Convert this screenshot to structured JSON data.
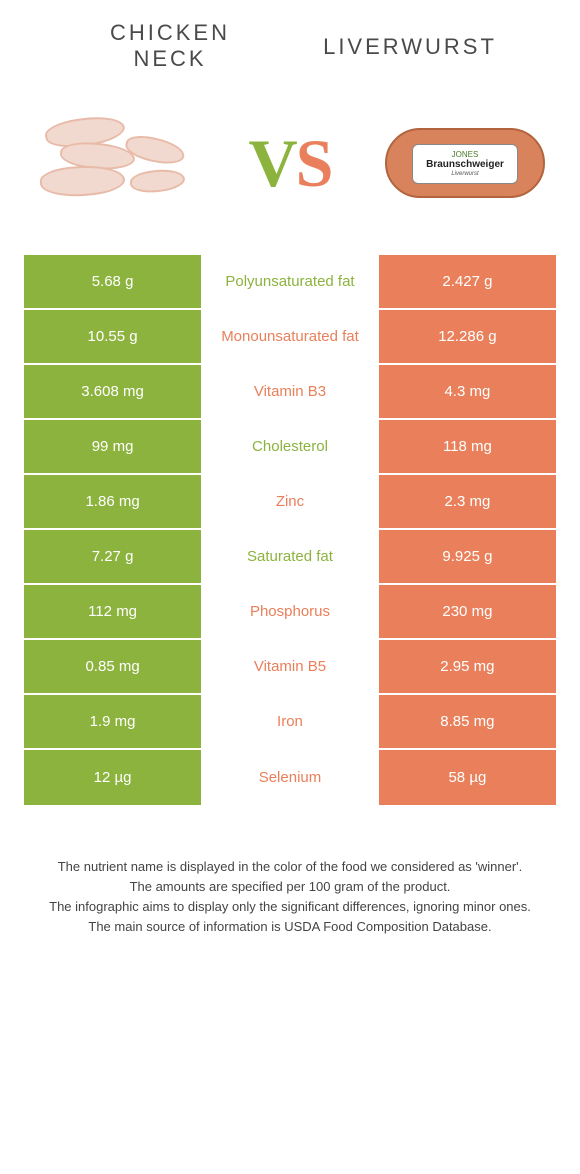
{
  "colors": {
    "left_bg": "#8cb33e",
    "right_bg": "#e9805b",
    "left_text": "#8cb33e",
    "right_text": "#e9805b",
    "vs_left": "#8cb33e",
    "vs_right": "#e9805b"
  },
  "titles": {
    "left": "CHICKEN\nNECK",
    "right": "LIVERWURST"
  },
  "vs": {
    "v": "V",
    "s": "S"
  },
  "product_label": {
    "brand": "JONES",
    "name": "Braunschweiger",
    "sub": "Liverwurst"
  },
  "rows": [
    {
      "left": "5.68 g",
      "label": "Polyunsaturated fat",
      "right": "2.427 g",
      "winner": "left"
    },
    {
      "left": "10.55 g",
      "label": "Monounsaturated fat",
      "right": "12.286 g",
      "winner": "right"
    },
    {
      "left": "3.608 mg",
      "label": "Vitamin B3",
      "right": "4.3 mg",
      "winner": "right"
    },
    {
      "left": "99 mg",
      "label": "Cholesterol",
      "right": "118 mg",
      "winner": "left"
    },
    {
      "left": "1.86 mg",
      "label": "Zinc",
      "right": "2.3 mg",
      "winner": "right"
    },
    {
      "left": "7.27 g",
      "label": "Saturated fat",
      "right": "9.925 g",
      "winner": "left"
    },
    {
      "left": "112 mg",
      "label": "Phosphorus",
      "right": "230 mg",
      "winner": "right"
    },
    {
      "left": "0.85 mg",
      "label": "Vitamin B5",
      "right": "2.95 mg",
      "winner": "right"
    },
    {
      "left": "1.9 mg",
      "label": "Iron",
      "right": "8.85 mg",
      "winner": "right"
    },
    {
      "left": "12 µg",
      "label": "Selenium",
      "right": "58 µg",
      "winner": "right"
    }
  ],
  "footer": [
    "The nutrient name is displayed in the color of the food we considered as 'winner'.",
    "The amounts are specified per 100 gram of the product.",
    "The infographic aims to display only the significant differences, ignoring minor ones.",
    "The main source of information is USDA Food Composition Database."
  ]
}
